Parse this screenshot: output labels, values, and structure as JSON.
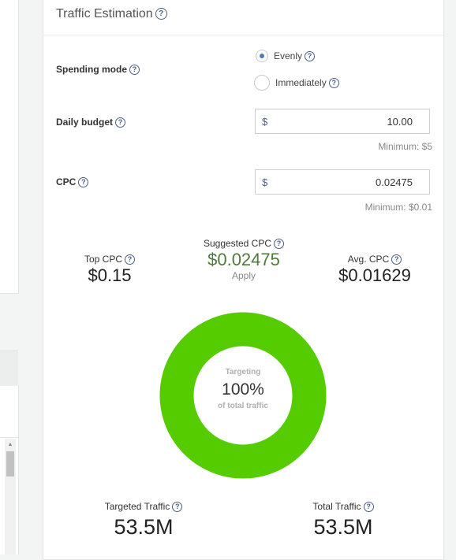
{
  "panel": {
    "title": "Traffic Estimation"
  },
  "spending_mode": {
    "label": "Spending mode",
    "options": [
      {
        "label": "Evenly",
        "selected": true
      },
      {
        "label": "Immediately",
        "selected": false
      }
    ]
  },
  "daily_budget": {
    "label": "Daily budget",
    "currency": "$",
    "value": "10.00",
    "minimum": "Minimum: $5"
  },
  "cpc": {
    "label": "CPC",
    "currency": "$",
    "value": "0.02475",
    "minimum": "Minimum: $0.01"
  },
  "stats": {
    "top_cpc": {
      "label": "Top CPC",
      "value": "$0.15"
    },
    "suggested_cpc": {
      "label": "Suggested CPC",
      "value": "$0.02475",
      "action": "Apply"
    },
    "avg_cpc": {
      "label": "Avg. CPC",
      "value": "$0.01629"
    }
  },
  "donut": {
    "label": "Targeting",
    "value": "100%",
    "sub": "of total traffic",
    "fraction": 1.0,
    "color": "#55cc00"
  },
  "traffic": {
    "targeted": {
      "label": "Targeted Traffic",
      "value": "53.5M"
    },
    "total": {
      "label": "Total Traffic",
      "value": "53.5M"
    }
  },
  "icons": {
    "help": "?",
    "scroll_up": "▲"
  },
  "colors": {
    "accent": "#4a5f86",
    "radio_selected": "#4f79b8",
    "suggested": "#4f7a3b",
    "donut": "#55cc00"
  }
}
